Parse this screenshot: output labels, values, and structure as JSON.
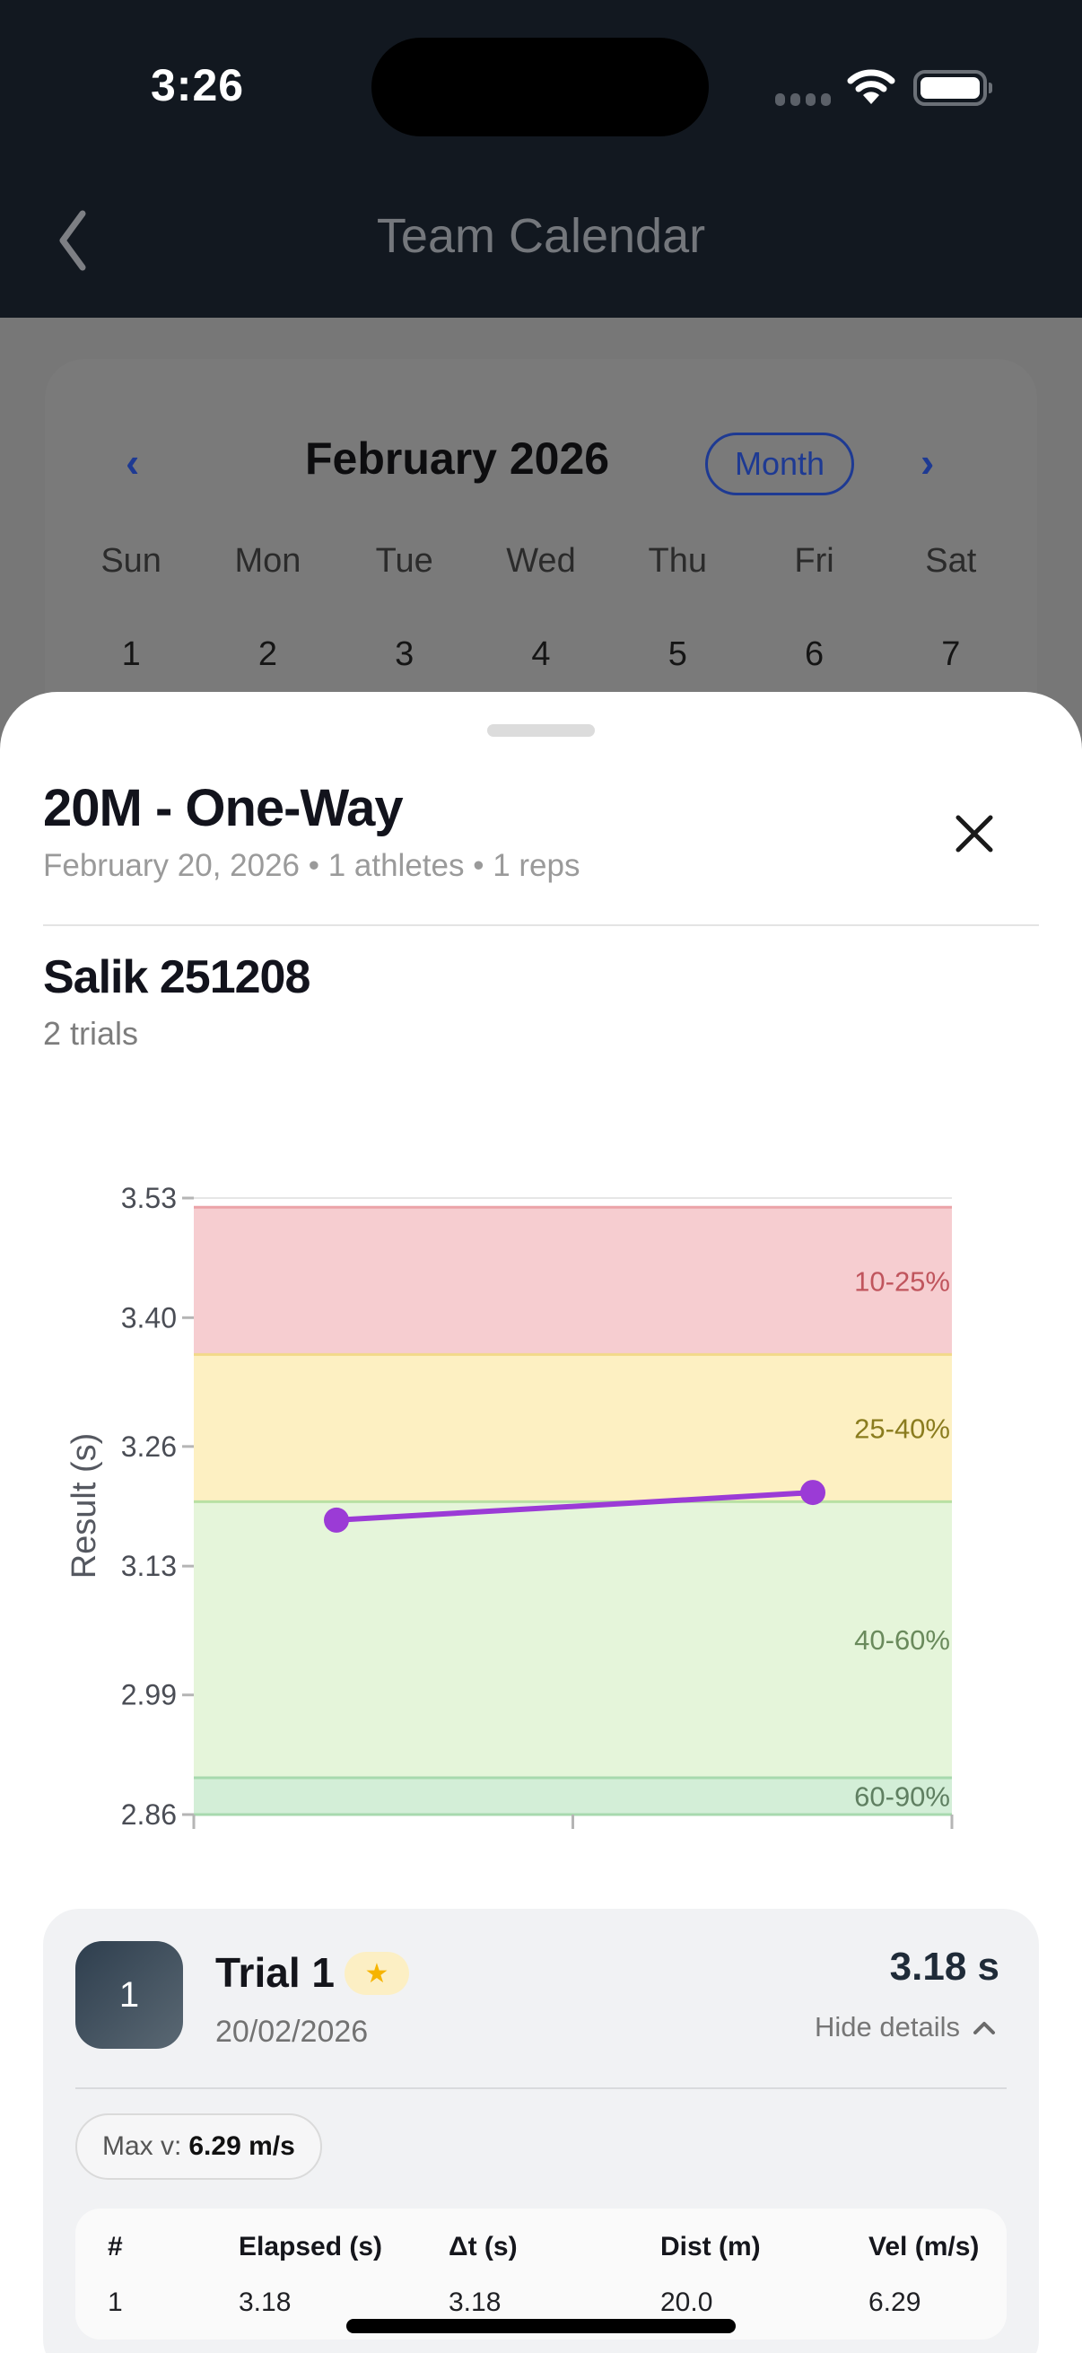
{
  "status_bar": {
    "time": "3:26",
    "signal_icon": "signal-dots-icon",
    "wifi_icon": "wifi-icon",
    "battery_icon": "battery-icon"
  },
  "nav": {
    "back_icon": "chevron-left-icon",
    "title": "Team Calendar"
  },
  "calendar": {
    "prev_icon": "chevron-left-icon",
    "month_label": "February 2026",
    "view_mode": "Month",
    "next_icon": "chevron-right-icon",
    "weekdays": [
      "Sun",
      "Mon",
      "Tue",
      "Wed",
      "Thu",
      "Fri",
      "Sat"
    ],
    "first_week": [
      "1",
      "2",
      "3",
      "4",
      "5",
      "6",
      "7"
    ]
  },
  "sheet": {
    "title": "20M - One-Way",
    "meta": "February 20, 2026 • 1 athletes • 1 reps",
    "close_icon": "close-icon",
    "athlete": {
      "name": "Salik 251208",
      "trials_label": "2 trials"
    }
  },
  "chart_data": {
    "type": "line",
    "title": "",
    "xlabel": "",
    "ylabel": "Result (s)",
    "ylim": [
      2.86,
      3.53
    ],
    "yticks": [
      "3.53",
      "3.40",
      "3.26",
      "3.13",
      "2.99",
      "2.86"
    ],
    "x": [
      1,
      2
    ],
    "series": [
      {
        "name": "Salik 251208",
        "values": [
          3.18,
          3.21
        ],
        "color": "#9b3bd6"
      }
    ],
    "bands": [
      {
        "label": "10-25%",
        "from": 3.36,
        "to": 3.52,
        "fill": "#f6cdd0",
        "edge": "#eba3a8",
        "text_color": "#c0555d"
      },
      {
        "label": "25-40%",
        "from": 3.2,
        "to": 3.36,
        "fill": "#fdf0c2",
        "edge": "#f2d989",
        "text_color": "#8a7c1e"
      },
      {
        "label": "40-60%",
        "from": 2.9,
        "to": 3.2,
        "fill": "#e5f5da",
        "edge": "#b9e0a3",
        "text_color": "#6a8a5c"
      },
      {
        "label": "60-90%",
        "from": 2.86,
        "to": 2.9,
        "fill": "#d3eed7",
        "edge": "#a7d9ae",
        "text_color": "#5f7f61"
      }
    ],
    "grid": false,
    "legend": "none"
  },
  "trial": {
    "number": "1",
    "title": "Trial 1",
    "badge_icon": "star-icon",
    "date": "20/02/2026",
    "result": "3.18 s",
    "toggle_label": "Hide details",
    "toggle_icon": "chevron-up-icon",
    "max_v_label": "Max v:",
    "max_v_value": "6.29 m/s",
    "table": {
      "headers": [
        "#",
        "Elapsed (s)",
        "Δt (s)",
        "Dist (m)",
        "Vel (m/s)"
      ],
      "rows": [
        [
          "1",
          "3.18",
          "3.18",
          "20.0",
          "6.29"
        ]
      ]
    }
  }
}
